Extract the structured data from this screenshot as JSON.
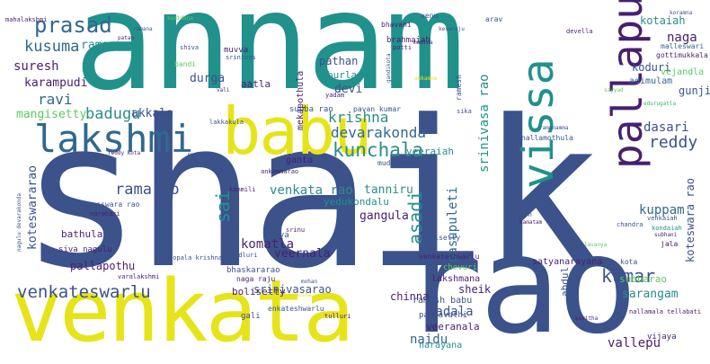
{
  "palette": {
    "navy": "#3b528b",
    "purple": "#481f70",
    "teal": "#21918c",
    "teal_light": "#2c8c8a",
    "green": "#5ec962",
    "yellow": "#e6e419",
    "blue": "#31688e",
    "mint": "#35b779"
  },
  "words": {
    "shaik": "shaik",
    "annam": "annam",
    "rao": "rao",
    "venkata": "venkata",
    "babu": "babu",
    "lakshmi": "lakshmi",
    "pallapu": "pallapu",
    "vissa": "vissa",
    "prasad": "prasad",
    "kusuma": "kusuma",
    "rama": "rama",
    "suresh": "suresh",
    "karampudi": "karampudi",
    "ravi": "ravi",
    "mangisetty": "mangisetty",
    "badugu": "badugu",
    "akkala": "akkala",
    "krishna": "krishna",
    "devarakonda": "devarakonda",
    "kunchala": "kunchala",
    "dasari": "dasari",
    "reddy": "reddy",
    "srinivasa_rao": "srinivasa rao",
    "venkata_rao": "venkata rao",
    "ramarao": "ramarao",
    "sai": "sai",
    "koteswararao": "koteswararao",
    "gangula": "gangula",
    "asadi": "asadi",
    "pasupuleti": "pasupuleti",
    "kuppam": "kuppam",
    "koteswara_rao": "koteswara rao",
    "tanniru": "tanniru",
    "yedukondalu": "yedukondalu",
    "suddapalli": "suddapalli",
    "komatla": "komatla",
    "veernala": "veernala",
    "pallapothu": "pallapothu",
    "venkateswarlu": "venkateswarlu",
    "srinivasarao": "srinivasarao",
    "bolisetty": "bolisetty",
    "kumar": "kumar",
    "sarangam": "sarangam",
    "madala": "madala",
    "veeranala": "veeranala",
    "naidu": "naidu",
    "vallepu": "vallepu",
    "subbarao": "subbarao",
    "naga": "naga",
    "kotaiah": "kotaiah",
    "koduri": "koduri",
    "gunji": "gunji",
    "pathan": "pathan",
    "burla": "burla",
    "devi": "devi",
    "durga": "durga",
    "aatla": "aatla",
    "muvva": "muvva",
    "brahmaiah": "brahmaiah",
    "mekapothula": "mekapothula",
    "ganta": "ganta",
    "siva": "siva",
    "subba_rao": "subba rao",
    "pavan_kumar": "pavan kumar",
    "veeraiah": "veeraiah",
    "ramesh_babu": "ramesh babu",
    "padmavathi": "padmavathi",
    "chinna": "chinna",
    "lakshmana": "lakshmana",
    "sheik": "sheik",
    "satyanarayana": "satyanarayana",
    "abdul": "abdul",
    "kota": "kota",
    "narayana": "narayana",
    "vijaya": "vijaya",
    "vejandla": "vejandla",
    "adimulam": "adimulam",
    "malleswari": "malleswari",
    "gottimukkala": "gottimukkala",
    "mahalakshmi": "mahalakshmi",
    "bhavani": "bhavani",
    "venu": "venu",
    "arav": "arav",
    "devella": "devella",
    "gali": "gali",
    "tulluri": "tulluri",
    "gudluri": "gudluri",
    "bathula": "bathula",
    "siva_nagulu": "siva nagulu",
    "varalakshmi": "varalakshmi",
    "bhaskararao": "bhaskararao",
    "naga_raju": "naga raju",
    "gopala_krishna": "gopala krishna",
    "enkateshwarlu": "enkateshwarlu",
    "katta": "katta",
    "anusha": "anusha",
    "srinu": "srinu",
    "chevuri": "chevuri",
    "peddisetty": "peddisetty",
    "venkateshwarlu": "venkateshwarlu",
    "nagulu_devarakonda": "nagulu devarakonda",
    "yadam": "yadam",
    "nallamothula": "nallamothula",
    "mudavarthi": "mudavarthi",
    "ankammarao": "ankammarao",
    "bandi": "bandi",
    "vali": "vali",
    "ramesh": "ramesh",
    "srinivas": "srinivas",
    "shiva": "shiva",
    "ankamma": "ankamma",
    "sika": "sika",
    "kakkula": "lakkakula",
    "gandikota": "gandikota",
    "potti": "potti",
    "madina": "madina",
    "venkaiah": "venkaiah",
    "kondaiah": "kondaiah",
    "subhani": "subhani",
    "jala": "jala",
    "chandra": "chandra",
    "nagesswara_rao": "nagesswara rao",
    "narahari": "narahari",
    "kammili": "kammili",
    "mohan": "mohan",
    "nallamala_tellabati": "nallamala tellabati",
    "satish": "satish",
    "edurugatla": "edurugatla",
    "koramna": "koramna",
    "sayyad": "sayyad",
    "kodidana": "kodidana",
    "ramana": "ramana",
    "patan": "patan",
    "kesaraju": "kesaraju",
    "reddy_kota": "reddy kota",
    "raghava": "raghava",
    "ramanamma": "ramanamma",
    "kamatam": "kamatam",
    "lavanya": "lavanya",
    "kavitha": "kavitha"
  }
}
